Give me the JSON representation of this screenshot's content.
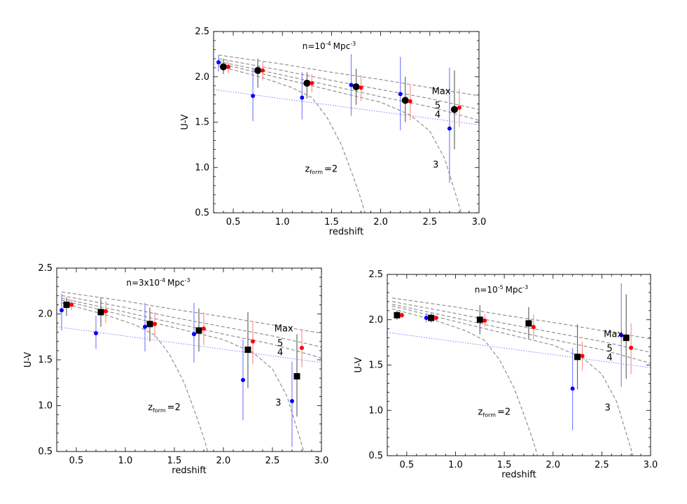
{
  "colors": {
    "blue": "#0000ff",
    "red": "#ff0000",
    "black": "#000000",
    "model": "#888888",
    "dotted": "#8080ff"
  },
  "chart_data": [
    {
      "type": "scatter",
      "title": "n=10⁻⁴ Mpc⁻³",
      "title_main": "n=10",
      "title_exp": "-4",
      "title_unit": "Mpc",
      "title_unit_exp": "-3",
      "xlabel": "redshift",
      "ylabel": "U-V",
      "xlim": [
        0.3,
        3.0
      ],
      "ylim": [
        0.5,
        2.5
      ],
      "xticks": [
        "0.5",
        "1.0",
        "1.5",
        "2.0",
        "2.5",
        "3.0"
      ],
      "yticks": [
        "0.5",
        "1.0",
        "1.5",
        "2.0",
        "2.5"
      ],
      "black_marker": "circle",
      "series": [
        {
          "name": "blue",
          "points": [
            {
              "x": 0.35,
              "y": 2.16,
              "lo": 2.06,
              "hi": 2.24
            },
            {
              "x": 0.7,
              "y": 1.79,
              "lo": 1.51,
              "hi": 2.1
            },
            {
              "x": 1.2,
              "y": 1.77,
              "lo": 1.53,
              "hi": 2.05
            },
            {
              "x": 1.7,
              "y": 1.91,
              "lo": 1.57,
              "hi": 2.25
            },
            {
              "x": 2.2,
              "y": 1.81,
              "lo": 1.41,
              "hi": 2.22
            },
            {
              "x": 2.7,
              "y": 1.43,
              "lo": 0.83,
              "hi": 2.1
            }
          ]
        },
        {
          "name": "black",
          "points": [
            {
              "x": 0.4,
              "y": 2.11,
              "lo": 2.03,
              "hi": 2.2
            },
            {
              "x": 0.75,
              "y": 2.07,
              "lo": 1.88,
              "hi": 2.2
            },
            {
              "x": 1.25,
              "y": 1.93,
              "lo": 1.76,
              "hi": 2.05
            },
            {
              "x": 1.75,
              "y": 1.89,
              "lo": 1.69,
              "hi": 2.09
            },
            {
              "x": 2.25,
              "y": 1.74,
              "lo": 1.5,
              "hi": 2.0
            },
            {
              "x": 2.75,
              "y": 1.64,
              "lo": 1.2,
              "hi": 2.07
            }
          ]
        },
        {
          "name": "red",
          "points": [
            {
              "x": 0.45,
              "y": 2.11,
              "lo": 2.04,
              "hi": 2.18
            },
            {
              "x": 0.8,
              "y": 2.07,
              "lo": 1.96,
              "hi": 2.17
            },
            {
              "x": 1.3,
              "y": 1.93,
              "lo": 1.83,
              "hi": 2.03
            },
            {
              "x": 1.8,
              "y": 1.88,
              "lo": 1.73,
              "hi": 2.02
            },
            {
              "x": 2.3,
              "y": 1.73,
              "lo": 1.52,
              "hi": 1.92
            },
            {
              "x": 2.8,
              "y": 1.66,
              "lo": 1.45,
              "hi": 1.87
            }
          ]
        }
      ],
      "curves": [
        {
          "name": "Max",
          "points": [
            [
              0.35,
              2.24
            ],
            [
              1.0,
              2.14
            ],
            [
              1.5,
              2.05
            ],
            [
              2.0,
              1.97
            ],
            [
              2.5,
              1.88
            ],
            [
              3.0,
              1.79
            ]
          ]
        },
        {
          "name": "5",
          "points": [
            [
              0.35,
              2.2
            ],
            [
              1.0,
              2.07
            ],
            [
              1.5,
              1.96
            ],
            [
              2.0,
              1.86
            ],
            [
              2.5,
              1.76
            ],
            [
              3.0,
              1.64
            ]
          ]
        },
        {
          "name": "4",
          "points": [
            [
              0.35,
              2.17
            ],
            [
              1.0,
              2.02
            ],
            [
              1.5,
              1.9
            ],
            [
              2.0,
              1.78
            ],
            [
              2.5,
              1.67
            ],
            [
              3.0,
              1.52
            ]
          ]
        },
        {
          "name": "3",
          "points": [
            [
              0.35,
              2.15
            ],
            [
              1.0,
              1.98
            ],
            [
              1.5,
              1.85
            ],
            [
              2.0,
              1.72
            ],
            [
              2.3,
              1.58
            ],
            [
              2.5,
              1.4
            ],
            [
              2.65,
              1.1
            ],
            [
              2.75,
              0.75
            ],
            [
              2.82,
              0.5
            ]
          ]
        },
        {
          "name": "z_form=2",
          "points": [
            [
              0.35,
              2.12
            ],
            [
              0.8,
              1.99
            ],
            [
              1.1,
              1.88
            ],
            [
              1.3,
              1.77
            ],
            [
              1.45,
              1.56
            ],
            [
              1.6,
              1.25
            ],
            [
              1.72,
              0.9
            ],
            [
              1.8,
              0.65
            ],
            [
              1.84,
              0.5
            ]
          ]
        }
      ],
      "dotted_line": [
        [
          0.3,
          1.86
        ],
        [
          3.0,
          1.47
        ]
      ],
      "labels": {
        "max": "Max",
        "five": "5",
        "four": "4",
        "three": "3",
        "zform_main": "z",
        "zform_sub": "form",
        "zform_val": "=2"
      }
    },
    {
      "type": "scatter",
      "title": "n=3x10⁻⁴ Mpc⁻³",
      "title_main": "n=3x10",
      "title_exp": "-4",
      "title_unit": "Mpc",
      "title_unit_exp": "-3",
      "xlabel": "redshift",
      "ylabel": "U-V",
      "xlim": [
        0.3,
        3.0
      ],
      "ylim": [
        0.5,
        2.5
      ],
      "xticks": [
        "0.5",
        "1.0",
        "1.5",
        "2.0",
        "2.5",
        "3.0"
      ],
      "yticks": [
        "0.5",
        "1.0",
        "1.5",
        "2.0",
        "2.5"
      ],
      "black_marker": "square",
      "series": [
        {
          "name": "blue",
          "points": [
            {
              "x": 0.35,
              "y": 2.04,
              "lo": 1.82,
              "hi": 2.22
            },
            {
              "x": 0.7,
              "y": 1.79,
              "lo": 1.62,
              "hi": 1.98
            },
            {
              "x": 1.2,
              "y": 1.86,
              "lo": 1.59,
              "hi": 2.12
            },
            {
              "x": 1.7,
              "y": 1.78,
              "lo": 1.47,
              "hi": 2.12
            },
            {
              "x": 2.2,
              "y": 1.28,
              "lo": 0.84,
              "hi": 1.72
            },
            {
              "x": 2.7,
              "y": 1.05,
              "lo": 0.55,
              "hi": 1.48
            }
          ]
        },
        {
          "name": "black",
          "points": [
            {
              "x": 0.4,
              "y": 2.1,
              "lo": 1.98,
              "hi": 2.18
            },
            {
              "x": 0.75,
              "y": 2.02,
              "lo": 1.86,
              "hi": 2.18
            },
            {
              "x": 1.25,
              "y": 1.89,
              "lo": 1.7,
              "hi": 2.07
            },
            {
              "x": 1.75,
              "y": 1.82,
              "lo": 1.59,
              "hi": 2.06
            },
            {
              "x": 2.25,
              "y": 1.61,
              "lo": 1.19,
              "hi": 2.02
            },
            {
              "x": 2.75,
              "y": 1.32,
              "lo": 0.88,
              "hi": 1.78
            }
          ]
        },
        {
          "name": "red",
          "points": [
            {
              "x": 0.45,
              "y": 2.1,
              "lo": 2.04,
              "hi": 2.16
            },
            {
              "x": 0.8,
              "y": 2.03,
              "lo": 1.9,
              "hi": 2.14
            },
            {
              "x": 1.3,
              "y": 1.89,
              "lo": 1.74,
              "hi": 2.02
            },
            {
              "x": 1.8,
              "y": 1.84,
              "lo": 1.66,
              "hi": 2.02
            },
            {
              "x": 2.3,
              "y": 1.7,
              "lo": 1.45,
              "hi": 1.92
            },
            {
              "x": 2.8,
              "y": 1.63,
              "lo": 1.42,
              "hi": 1.83
            }
          ]
        }
      ],
      "curves": [
        {
          "name": "Max",
          "points": [
            [
              0.35,
              2.24
            ],
            [
              1.0,
              2.14
            ],
            [
              1.5,
              2.05
            ],
            [
              2.0,
              1.97
            ],
            [
              2.5,
              1.88
            ],
            [
              3.0,
              1.79
            ]
          ]
        },
        {
          "name": "5",
          "points": [
            [
              0.35,
              2.2
            ],
            [
              1.0,
              2.07
            ],
            [
              1.5,
              1.96
            ],
            [
              2.0,
              1.86
            ],
            [
              2.5,
              1.76
            ],
            [
              3.0,
              1.64
            ]
          ]
        },
        {
          "name": "4",
          "points": [
            [
              0.35,
              2.17
            ],
            [
              1.0,
              2.02
            ],
            [
              1.5,
              1.9
            ],
            [
              2.0,
              1.78
            ],
            [
              2.5,
              1.67
            ],
            [
              3.0,
              1.52
            ]
          ]
        },
        {
          "name": "3",
          "points": [
            [
              0.35,
              2.15
            ],
            [
              1.0,
              1.98
            ],
            [
              1.5,
              1.85
            ],
            [
              2.0,
              1.72
            ],
            [
              2.3,
              1.58
            ],
            [
              2.5,
              1.4
            ],
            [
              2.65,
              1.1
            ],
            [
              2.75,
              0.75
            ],
            [
              2.82,
              0.5
            ]
          ]
        },
        {
          "name": "z_form=2",
          "points": [
            [
              0.35,
              2.12
            ],
            [
              0.8,
              1.99
            ],
            [
              1.1,
              1.88
            ],
            [
              1.3,
              1.77
            ],
            [
              1.45,
              1.56
            ],
            [
              1.6,
              1.25
            ],
            [
              1.72,
              0.9
            ],
            [
              1.8,
              0.65
            ],
            [
              1.84,
              0.5
            ]
          ]
        }
      ],
      "dotted_line": [
        [
          0.3,
          1.86
        ],
        [
          3.0,
          1.47
        ]
      ],
      "labels": {
        "max": "Max",
        "five": "5",
        "four": "4",
        "three": "3",
        "zform_main": "z",
        "zform_sub": "form",
        "zform_val": "=2"
      }
    },
    {
      "type": "scatter",
      "title": "n=10⁻⁵ Mpc⁻³",
      "title_main": "n=10",
      "title_exp": "-5",
      "title_unit": "Mpc",
      "title_unit_exp": "-3",
      "xlabel": "redshift",
      "ylabel": "U-V",
      "xlim": [
        0.3,
        3.0
      ],
      "ylim": [
        0.5,
        2.5
      ],
      "xticks": [
        "0.5",
        "1.0",
        "1.5",
        "2.0",
        "2.5",
        "3.0"
      ],
      "yticks": [
        "0.5",
        "1.0",
        "1.5",
        "2.0",
        "2.5"
      ],
      "black_marker": "square",
      "series": [
        {
          "name": "blue",
          "points": [
            {
              "x": 0.7,
              "y": 2.02,
              "lo": 1.97,
              "hi": 2.07
            },
            {
              "x": 2.2,
              "y": 1.24,
              "lo": 0.78,
              "hi": 1.69
            },
            {
              "x": 2.7,
              "y": 1.83,
              "lo": 1.26,
              "hi": 2.4
            }
          ]
        },
        {
          "name": "black",
          "points": [
            {
              "x": 0.4,
              "y": 2.05,
              "lo": 2.0,
              "hi": 2.1
            },
            {
              "x": 0.75,
              "y": 2.02,
              "lo": 1.97,
              "hi": 2.07
            },
            {
              "x": 1.25,
              "y": 2.0,
              "lo": 1.84,
              "hi": 2.16
            },
            {
              "x": 1.75,
              "y": 1.96,
              "lo": 1.79,
              "hi": 2.14
            },
            {
              "x": 2.25,
              "y": 1.59,
              "lo": 1.23,
              "hi": 1.95
            },
            {
              "x": 2.75,
              "y": 1.8,
              "lo": 1.35,
              "hi": 2.28
            }
          ]
        },
        {
          "name": "red",
          "points": [
            {
              "x": 0.45,
              "y": 2.05,
              "lo": 2.02,
              "hi": 2.08
            },
            {
              "x": 0.8,
              "y": 2.02,
              "lo": 1.99,
              "hi": 2.05
            },
            {
              "x": 1.3,
              "y": 1.99,
              "lo": 1.92,
              "hi": 2.06
            },
            {
              "x": 1.8,
              "y": 1.92,
              "lo": 1.78,
              "hi": 2.06
            },
            {
              "x": 2.3,
              "y": 1.6,
              "lo": 1.44,
              "hi": 1.76
            },
            {
              "x": 2.8,
              "y": 1.69,
              "lo": 1.4,
              "hi": 1.96
            }
          ]
        }
      ],
      "curves": [
        {
          "name": "Max",
          "points": [
            [
              0.35,
              2.24
            ],
            [
              1.0,
              2.14
            ],
            [
              1.5,
              2.05
            ],
            [
              2.0,
              1.97
            ],
            [
              2.5,
              1.88
            ],
            [
              3.0,
              1.79
            ]
          ]
        },
        {
          "name": "5",
          "points": [
            [
              0.35,
              2.2
            ],
            [
              1.0,
              2.07
            ],
            [
              1.5,
              1.96
            ],
            [
              2.0,
              1.86
            ],
            [
              2.5,
              1.76
            ],
            [
              3.0,
              1.64
            ]
          ]
        },
        {
          "name": "4",
          "points": [
            [
              0.35,
              2.17
            ],
            [
              1.0,
              2.02
            ],
            [
              1.5,
              1.9
            ],
            [
              2.0,
              1.78
            ],
            [
              2.5,
              1.67
            ],
            [
              3.0,
              1.52
            ]
          ]
        },
        {
          "name": "3",
          "points": [
            [
              0.35,
              2.15
            ],
            [
              1.0,
              1.98
            ],
            [
              1.5,
              1.85
            ],
            [
              2.0,
              1.72
            ],
            [
              2.3,
              1.58
            ],
            [
              2.5,
              1.4
            ],
            [
              2.65,
              1.1
            ],
            [
              2.75,
              0.75
            ],
            [
              2.82,
              0.5
            ]
          ]
        },
        {
          "name": "z_form=2",
          "points": [
            [
              0.35,
              2.12
            ],
            [
              0.8,
              1.99
            ],
            [
              1.1,
              1.88
            ],
            [
              1.3,
              1.77
            ],
            [
              1.45,
              1.56
            ],
            [
              1.6,
              1.25
            ],
            [
              1.72,
              0.9
            ],
            [
              1.8,
              0.65
            ],
            [
              1.84,
              0.5
            ]
          ]
        }
      ],
      "dotted_line": [
        [
          0.3,
          1.86
        ],
        [
          3.0,
          1.47
        ]
      ],
      "labels": {
        "max": "Max",
        "five": "5",
        "four": "4",
        "three": "3",
        "zform_main": "z",
        "zform_sub": "form",
        "zform_val": "=2"
      }
    }
  ]
}
